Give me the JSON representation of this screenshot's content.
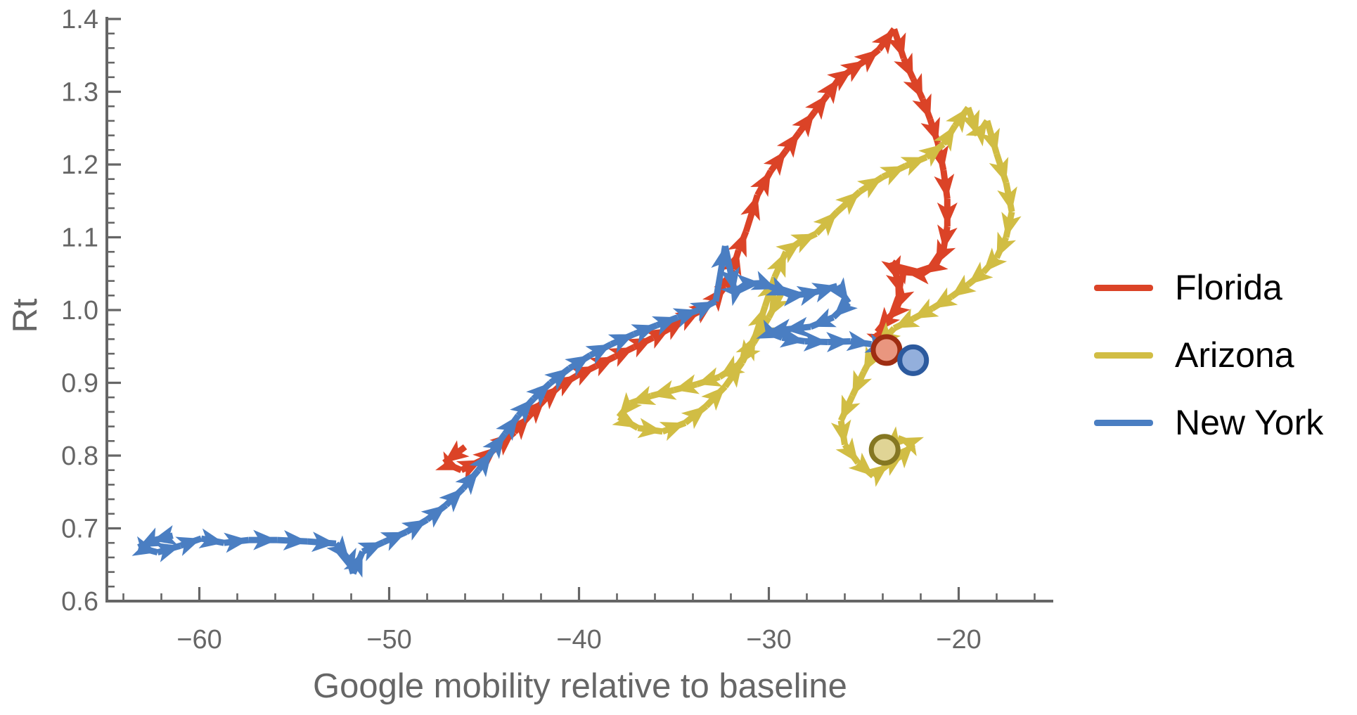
{
  "chart_data": {
    "type": "line",
    "subtype": "phase-trajectory-with-arrows",
    "title": "",
    "xlabel": "Google mobility relative to baseline",
    "ylabel": "Rt",
    "xlim": [
      -64.9,
      -15.0
    ],
    "ylim": [
      0.6,
      1.407
    ],
    "grid": false,
    "legend_position": "right-outside",
    "x_major_ticks": [
      -60,
      -50,
      -40,
      -30,
      -20
    ],
    "x_tick_labels": [
      "−60",
      "−50",
      "−40",
      "−30",
      "−20"
    ],
    "x_minor_step": 2,
    "y_major_ticks": [
      0.6,
      0.7,
      0.8,
      0.9,
      1.0,
      1.1,
      1.2,
      1.3,
      1.4
    ],
    "y_tick_labels": [
      "0.6",
      "0.7",
      "0.8",
      "0.9",
      "1.0",
      "1.1",
      "1.2",
      "1.3",
      "1.4"
    ],
    "y_minor_step": 0.02,
    "style": {
      "axis_color": "#666666",
      "tick_label_color": "#666666",
      "axis_title_color": "#666666",
      "legend_text_color": "#000000",
      "background": "#ffffff",
      "line_width": 9,
      "arrowhead_length": 34,
      "arrowhead_halfwidth": 14.5,
      "end_marker_radius": 19,
      "end_marker_ring_width": 7
    },
    "series": [
      {
        "name": "Florida",
        "color": "#DB4327",
        "marker_fill": "#E9967F",
        "marker_ring": "#9E2D12",
        "points": [
          [
            -46.0,
            0.812
          ],
          [
            -47.1,
            0.79
          ],
          [
            -46.2,
            0.78
          ],
          [
            -45.1,
            0.794
          ],
          [
            -44.3,
            0.812
          ],
          [
            -43.4,
            0.832
          ],
          [
            -42.6,
            0.855
          ],
          [
            -41.8,
            0.877
          ],
          [
            -41.0,
            0.896
          ],
          [
            -40.1,
            0.91
          ],
          [
            -39.1,
            0.923
          ],
          [
            -38.1,
            0.936
          ],
          [
            -37.1,
            0.949
          ],
          [
            -36.1,
            0.962
          ],
          [
            -35.2,
            0.975
          ],
          [
            -34.4,
            0.988
          ],
          [
            -33.6,
            0.999
          ],
          [
            -32.9,
            1.012
          ],
          [
            -32.3,
            1.032
          ],
          [
            -31.9,
            1.056
          ],
          [
            -31.6,
            1.082
          ],
          [
            -31.2,
            1.108
          ],
          [
            -30.6,
            1.158
          ],
          [
            -29.9,
            1.191
          ],
          [
            -29.1,
            1.219
          ],
          [
            -28.4,
            1.244
          ],
          [
            -27.6,
            1.272
          ],
          [
            -26.9,
            1.296
          ],
          [
            -26.3,
            1.318
          ],
          [
            -25.6,
            1.331
          ],
          [
            -24.9,
            1.343
          ],
          [
            -24.2,
            1.358
          ],
          [
            -23.4,
            1.386
          ],
          [
            -22.9,
            1.346
          ],
          [
            -22.4,
            1.318
          ],
          [
            -21.9,
            1.29
          ],
          [
            -21.5,
            1.262
          ],
          [
            -21.1,
            1.23
          ],
          [
            -20.8,
            1.192
          ],
          [
            -20.6,
            1.153
          ],
          [
            -20.6,
            1.115
          ],
          [
            -20.8,
            1.083
          ],
          [
            -21.2,
            1.062
          ],
          [
            -21.9,
            1.05
          ],
          [
            -22.8,
            1.052
          ],
          [
            -23.5,
            1.066
          ],
          [
            -23.2,
            1.04
          ],
          [
            -23.0,
            1.02
          ],
          [
            -23.3,
            1.0
          ],
          [
            -23.8,
            0.986
          ],
          [
            -24.3,
            0.97
          ],
          [
            -23.8,
            0.945
          ]
        ]
      },
      {
        "name": "Arizona",
        "color": "#D1BD44",
        "marker_fill": "#E0D495",
        "marker_ring": "#857722",
        "points": [
          [
            -29.2,
            1.03
          ],
          [
            -30.0,
            0.99
          ],
          [
            -30.8,
            0.955
          ],
          [
            -31.6,
            0.925
          ],
          [
            -32.6,
            0.908
          ],
          [
            -33.8,
            0.898
          ],
          [
            -35.0,
            0.89
          ],
          [
            -36.2,
            0.882
          ],
          [
            -37.3,
            0.872
          ],
          [
            -37.9,
            0.853
          ],
          [
            -36.9,
            0.838
          ],
          [
            -35.6,
            0.833
          ],
          [
            -34.4,
            0.845
          ],
          [
            -33.3,
            0.868
          ],
          [
            -32.3,
            0.895
          ],
          [
            -31.4,
            0.928
          ],
          [
            -30.7,
            0.965
          ],
          [
            -30.2,
            1.005
          ],
          [
            -29.7,
            1.045
          ],
          [
            -29.1,
            1.08
          ],
          [
            -28.3,
            1.095
          ],
          [
            -27.5,
            1.105
          ],
          [
            -26.4,
            1.135
          ],
          [
            -25.2,
            1.163
          ],
          [
            -24.0,
            1.183
          ],
          [
            -22.8,
            1.198
          ],
          [
            -21.7,
            1.21
          ],
          [
            -20.8,
            1.228
          ],
          [
            -20.2,
            1.253
          ],
          [
            -19.5,
            1.278
          ],
          [
            -19.0,
            1.24
          ],
          [
            -18.5,
            1.26
          ],
          [
            -18.0,
            1.215
          ],
          [
            -17.5,
            1.175
          ],
          [
            -17.2,
            1.135
          ],
          [
            -17.5,
            1.1
          ],
          [
            -18.0,
            1.072
          ],
          [
            -18.7,
            1.052
          ],
          [
            -19.5,
            1.035
          ],
          [
            -20.4,
            1.018
          ],
          [
            -21.4,
            1.002
          ],
          [
            -22.4,
            0.988
          ],
          [
            -23.4,
            0.975
          ],
          [
            -24.3,
            0.95
          ],
          [
            -25.0,
            0.915
          ],
          [
            -25.6,
            0.882
          ],
          [
            -26.2,
            0.848
          ],
          [
            -26.0,
            0.815
          ],
          [
            -25.3,
            0.79
          ],
          [
            -24.5,
            0.772
          ],
          [
            -23.7,
            0.788
          ],
          [
            -22.9,
            0.802
          ],
          [
            -22.4,
            0.816
          ],
          [
            -23.2,
            0.824
          ],
          [
            -23.9,
            0.808
          ]
        ]
      },
      {
        "name": "New York",
        "color": "#4A7EC2",
        "marker_fill": "#93AFDC",
        "marker_ring": "#2C5A9E",
        "points": [
          [
            -61.4,
            0.69
          ],
          [
            -62.5,
            0.683
          ],
          [
            -63.2,
            0.674
          ],
          [
            -62.2,
            0.667
          ],
          [
            -61.0,
            0.676
          ],
          [
            -59.9,
            0.686
          ],
          [
            -58.7,
            0.68
          ],
          [
            -57.4,
            0.684
          ],
          [
            -55.9,
            0.684
          ],
          [
            -54.3,
            0.682
          ],
          [
            -52.8,
            0.679
          ],
          [
            -52.1,
            0.656
          ],
          [
            -51.9,
            0.638
          ],
          [
            -51.4,
            0.668
          ],
          [
            -50.3,
            0.681
          ],
          [
            -49.1,
            0.695
          ],
          [
            -48.0,
            0.712
          ],
          [
            -47.0,
            0.732
          ],
          [
            -46.1,
            0.755
          ],
          [
            -45.3,
            0.78
          ],
          [
            -44.6,
            0.805
          ],
          [
            -43.9,
            0.83
          ],
          [
            -43.2,
            0.855
          ],
          [
            -42.4,
            0.878
          ],
          [
            -41.5,
            0.9
          ],
          [
            -40.5,
            0.92
          ],
          [
            -39.4,
            0.938
          ],
          [
            -38.3,
            0.953
          ],
          [
            -37.1,
            0.967
          ],
          [
            -35.9,
            0.979
          ],
          [
            -34.8,
            0.99
          ],
          [
            -33.7,
            1.0
          ],
          [
            -32.8,
            1.012
          ],
          [
            -32.3,
            1.088
          ],
          [
            -31.8,
            1.025
          ],
          [
            -31.2,
            1.036
          ],
          [
            -30.4,
            1.037
          ],
          [
            -29.6,
            1.029
          ],
          [
            -28.8,
            1.02
          ],
          [
            -28.0,
            1.022
          ],
          [
            -27.2,
            1.027
          ],
          [
            -26.4,
            1.033
          ],
          [
            -25.8,
            1.01
          ],
          [
            -26.6,
            0.99
          ],
          [
            -27.8,
            0.977
          ],
          [
            -29.2,
            0.973
          ],
          [
            -30.1,
            0.97
          ],
          [
            -29.3,
            0.962
          ],
          [
            -28.1,
            0.957
          ],
          [
            -26.9,
            0.956
          ],
          [
            -25.7,
            0.957
          ],
          [
            -24.6,
            0.953
          ],
          [
            -23.6,
            0.944
          ],
          [
            -22.4,
            0.931
          ]
        ]
      }
    ]
  },
  "legend": {
    "items": [
      {
        "label": "Florida"
      },
      {
        "label": "Arizona"
      },
      {
        "label": "New York"
      }
    ]
  }
}
